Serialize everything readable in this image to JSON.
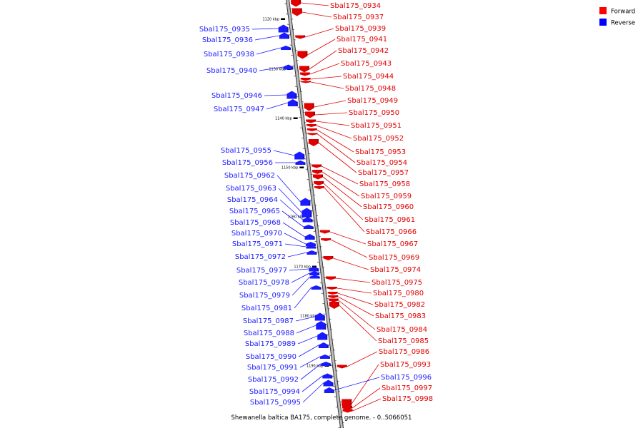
{
  "legend": {
    "items": [
      {
        "label": "Forward",
        "color": "#ff0000"
      },
      {
        "label": "Reverse",
        "color": "#0000ff"
      }
    ]
  },
  "caption": "Shewanella baltica BA175, complete genome. - 0..5066051",
  "colors": {
    "forward": "#e00000",
    "reverse": "#1a1aff",
    "axis": "#555555"
  },
  "ticks": [
    "1120 kbp",
    "1130 kbp",
    "1140 kbp",
    "1150 kbp",
    "1160 kbp",
    "1170 kbp",
    "1180 kbp",
    "1190 kbp"
  ],
  "forward_genes": [
    "Sbal175_0934",
    "Sbal175_0937",
    "Sbal175_0939",
    "Sbal175_0941",
    "Sbal175_0942",
    "Sbal175_0943",
    "Sbal175_0944",
    "Sbal175_0948",
    "Sbal175_0949",
    "Sbal175_0950",
    "Sbal175_0951",
    "Sbal175_0952",
    "Sbal175_0953",
    "Sbal175_0954",
    "Sbal175_0957",
    "Sbal175_0958",
    "Sbal175_0959",
    "Sbal175_0960",
    "Sbal175_0961",
    "Sbal175_0966",
    "Sbal175_0967",
    "Sbal175_0969",
    "Sbal175_0974",
    "Sbal175_0975",
    "Sbal175_0980",
    "Sbal175_0982",
    "Sbal175_0983",
    "Sbal175_0984",
    "Sbal175_0985",
    "Sbal175_0986",
    "Sbal175_0993",
    "Sbal175_0997",
    "Sbal175_0998"
  ],
  "reverse_genes": [
    "Sbal175_0935",
    "Sbal175_0936",
    "Sbal175_0938",
    "Sbal175_0940",
    "Sbal175_0946",
    "Sbal175_0947",
    "Sbal175_0955",
    "Sbal175_0956",
    "Sbal175_0962",
    "Sbal175_0963",
    "Sbal175_0964",
    "Sbal175_0965",
    "Sbal175_0968",
    "Sbal175_0970",
    "Sbal175_0971",
    "Sbal175_0972",
    "Sbal175_0977",
    "Sbal175_0978",
    "Sbal175_0979",
    "Sbal175_0981",
    "Sbal175_0987",
    "Sbal175_0988",
    "Sbal175_0989",
    "Sbal175_0990",
    "Sbal175_0991",
    "Sbal175_0992",
    "Sbal175_0994",
    "Sbal175_0995",
    "Sbal175_0996"
  ]
}
